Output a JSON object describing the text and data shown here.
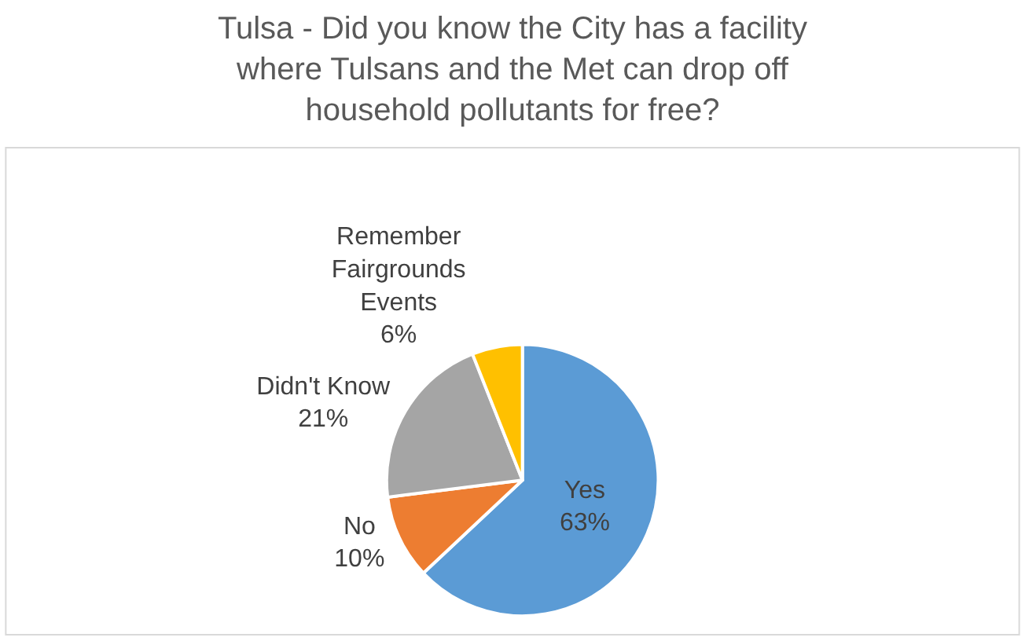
{
  "chart_data": {
    "type": "pie",
    "title": "Tulsa - Did you know the City has a facility where Tulsans and the Met can drop off household pollutants for free?",
    "categories": [
      "Yes",
      "No",
      "Didn't Know",
      "Remember Fairgrounds Events"
    ],
    "values": [
      63,
      10,
      21,
      6
    ],
    "value_labels": [
      "63%",
      "10%",
      "21%",
      "6%"
    ],
    "colors": [
      "#5b9bd5",
      "#ed7d31",
      "#a5a5a5",
      "#ffc000"
    ],
    "legend": false
  }
}
